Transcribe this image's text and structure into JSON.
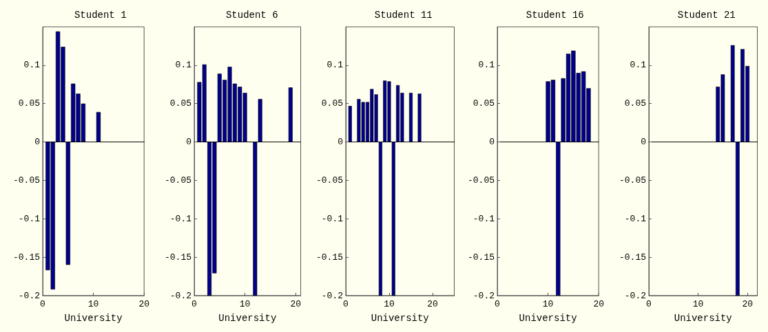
{
  "chart_data": [
    {
      "type": "bar",
      "title": "Student 1",
      "xlabel": "University",
      "x": [
        1,
        2,
        3,
        4,
        5,
        6,
        7,
        8,
        11
      ],
      "values": [
        -0.167,
        -0.192,
        0.144,
        0.124,
        -0.16,
        0.076,
        0.063,
        0.05,
        0.039
      ],
      "color": "#00008b",
      "xlim": [
        0,
        20
      ],
      "xticks": [
        0,
        10,
        20
      ],
      "ylim": [
        -0.2,
        0.15
      ],
      "yticks": [
        -0.2,
        -0.15,
        -0.1,
        -0.05,
        0,
        0.05,
        0.1
      ]
    },
    {
      "type": "bar",
      "title": "Student 6",
      "xlabel": "University",
      "x": [
        1,
        2,
        3,
        4,
        5,
        6,
        7,
        8,
        9,
        10,
        12,
        13,
        19
      ],
      "values": [
        0.078,
        0.101,
        -0.2,
        -0.171,
        0.089,
        0.081,
        0.098,
        0.076,
        0.072,
        0.064,
        -0.2,
        0.056,
        0.071
      ],
      "color": "#00008b",
      "xlim": [
        0,
        21
      ],
      "xticks": [
        0,
        10,
        20
      ],
      "ylim": [
        -0.2,
        0.15
      ],
      "yticks": [
        -0.2,
        -0.15,
        -0.1,
        -0.05,
        0,
        0.05,
        0.1
      ]
    },
    {
      "type": "bar",
      "title": "Student 11",
      "xlabel": "University",
      "x": [
        1,
        3,
        4,
        5,
        6,
        7,
        8,
        9,
        10,
        11,
        12,
        13,
        15,
        17
      ],
      "values": [
        0.047,
        0.056,
        0.052,
        0.052,
        0.069,
        0.062,
        -0.2,
        0.08,
        0.079,
        -0.2,
        0.074,
        0.064,
        0.064,
        0.063
      ],
      "color": "#00008b",
      "xlim": [
        0,
        25
      ],
      "xticks": [
        0,
        10,
        20
      ],
      "ylim": [
        -0.2,
        0.15
      ],
      "yticks": [
        -0.2,
        -0.15,
        -0.1,
        -0.05,
        0,
        0.05,
        0.1
      ]
    },
    {
      "type": "bar",
      "title": "Student 16",
      "xlabel": "University",
      "x": [
        10,
        11,
        12,
        13,
        14,
        15,
        16,
        17,
        18
      ],
      "values": [
        0.079,
        0.081,
        -0.2,
        0.083,
        0.115,
        0.119,
        0.09,
        0.092,
        0.07
      ],
      "color": "#00008b",
      "xlim": [
        0,
        20
      ],
      "xticks": [
        0,
        10,
        20
      ],
      "ylim": [
        -0.2,
        0.15
      ],
      "yticks": [
        -0.2,
        -0.15,
        -0.1,
        -0.05,
        0,
        0.05,
        0.1
      ]
    },
    {
      "type": "bar",
      "title": "Student 21",
      "xlabel": "University",
      "x": [
        14,
        15,
        17,
        18,
        19,
        20
      ],
      "values": [
        0.072,
        0.088,
        0.126,
        -0.2,
        0.121,
        0.099
      ],
      "color": "#00008b",
      "xlim": [
        0,
        22
      ],
      "xticks": [
        0,
        10,
        20
      ],
      "ylim": [
        -0.2,
        0.15
      ],
      "yticks": [
        -0.2,
        -0.15,
        -0.1,
        -0.05,
        0,
        0.05,
        0.1
      ]
    }
  ]
}
